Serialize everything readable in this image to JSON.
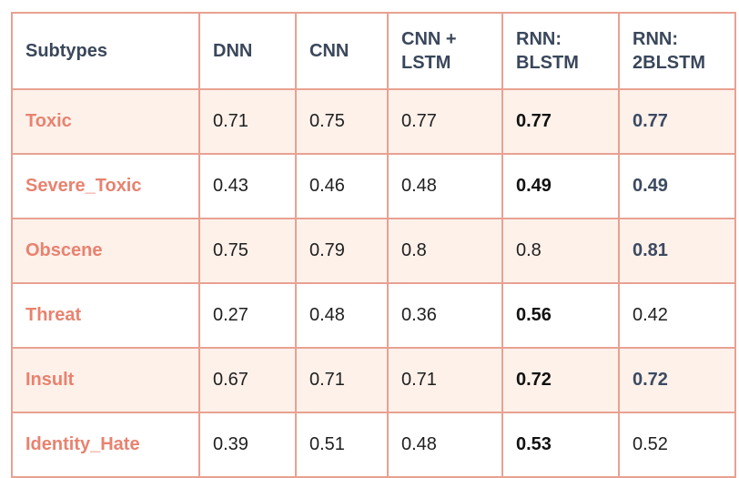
{
  "table": {
    "headers": [
      "Subtypes",
      "DNN",
      "CNN",
      "CNN +\nLSTM",
      "RNN:\nBLSTM",
      "RNN:\n2BLSTM"
    ],
    "rows": [
      {
        "subtype": "Toxic",
        "dnn": "0.71",
        "cnn": "0.75",
        "cnn_lstm": "0.77",
        "blstm": "0.77",
        "blstm_bold": true,
        "b2": "0.77",
        "b2_bold": true
      },
      {
        "subtype": "Severe_Toxic",
        "dnn": "0.43",
        "cnn": "0.46",
        "cnn_lstm": "0.48",
        "blstm": "0.49",
        "blstm_bold": true,
        "b2": "0.49",
        "b2_bold": true
      },
      {
        "subtype": "Obscene",
        "dnn": "0.75",
        "cnn": "0.79",
        "cnn_lstm": "0.8",
        "blstm": "0.8",
        "blstm_bold": false,
        "b2": "0.81",
        "b2_bold": true
      },
      {
        "subtype": "Threat",
        "dnn": "0.27",
        "cnn": "0.48",
        "cnn_lstm": "0.36",
        "blstm": "0.56",
        "blstm_bold": true,
        "b2": "0.42",
        "b2_bold": false
      },
      {
        "subtype": "Insult",
        "dnn": "0.67",
        "cnn": "0.71",
        "cnn_lstm": "0.71",
        "blstm": "0.72",
        "blstm_bold": true,
        "b2": "0.72",
        "b2_bold": true
      },
      {
        "subtype": "Identity_Hate",
        "dnn": "0.39",
        "cnn": "0.51",
        "cnn_lstm": "0.48",
        "blstm": "0.53",
        "blstm_bold": true,
        "b2": "0.52",
        "b2_bold": false
      }
    ]
  },
  "colors": {
    "border": "#e8a192",
    "row_highlight": "#fdf1ea",
    "row_label": "#e8826f",
    "header_text": "#3a475b"
  }
}
